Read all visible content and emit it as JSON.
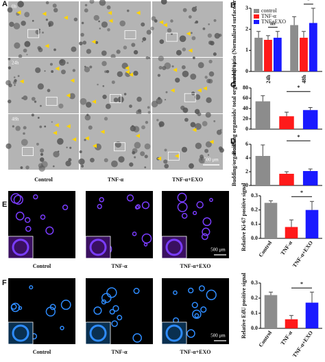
{
  "panels": {
    "A": {
      "letter": "A",
      "times": [
        "0h",
        "24h",
        "48h"
      ],
      "scale": "500 μm",
      "columns": [
        "Control",
        "TNF-α",
        "TNF-α+EXO"
      ]
    },
    "E": {
      "letter": "E",
      "scale": "500 μm",
      "columns": [
        "Control",
        "TNF-α",
        "TNF-α+EXO"
      ]
    },
    "F": {
      "letter": "F",
      "scale": "500 μm",
      "columns": [
        "Control",
        "TNF-α",
        "TNF-α+EXO"
      ]
    }
  },
  "chart_data": [
    {
      "type": "bar",
      "letter": "B",
      "ylabel": "Growth ratio (Normalized surface area)",
      "categories": [
        "24h",
        "48h"
      ],
      "series": [
        {
          "name": "control",
          "color": "#8c8c8c",
          "values": [
            1.6,
            2.2
          ],
          "errors": [
            0.3,
            0.4
          ]
        },
        {
          "name": "TNF-α",
          "color": "#ff1a1a",
          "values": [
            1.5,
            1.6
          ],
          "errors": [
            0.2,
            0.3
          ]
        },
        {
          "name": "TNF+EXO",
          "color": "#1a1aff",
          "values": [
            1.6,
            2.3
          ],
          "errors": [
            0.3,
            0.7
          ]
        }
      ],
      "ylim": [
        0,
        3
      ],
      "yticks": [
        0,
        1,
        2,
        3
      ],
      "annotations": [
        "ns",
        "*"
      ]
    },
    {
      "type": "bar",
      "letter": "C",
      "ylabel": "Budding organoids/ total organoids(%)",
      "categories": [
        null,
        null,
        null
      ],
      "values": [
        54,
        25,
        37
      ],
      "errors": [
        11,
        8,
        5
      ],
      "colors": [
        "#8c8c8c",
        "#ff1a1a",
        "#1a1aff"
      ],
      "ylim": [
        0,
        80
      ],
      "yticks": [
        0,
        20,
        40,
        60,
        80
      ],
      "annotations": [
        "*"
      ]
    },
    {
      "type": "bar",
      "letter": "D",
      "ylabel": "Budding/organoid",
      "categories": [
        null,
        null,
        null
      ],
      "values": [
        4.3,
        1.7,
        2.1
      ],
      "errors": [
        1.6,
        0.3,
        0.3
      ],
      "colors": [
        "#8c8c8c",
        "#ff1a1a",
        "#1a1aff"
      ],
      "ylim": [
        0,
        6
      ],
      "yticks": [
        0,
        2,
        4,
        6
      ],
      "annotations": [
        "*"
      ]
    },
    {
      "type": "bar",
      "ylabel": "Relative Ki-67 positive signal",
      "categories": [
        "Control",
        "TNF-α",
        "TNF-α+EXO"
      ],
      "values": [
        0.25,
        0.08,
        0.2
      ],
      "errors": [
        0.015,
        0.05,
        0.06
      ],
      "colors": [
        "#8c8c8c",
        "#ff1a1a",
        "#1a1aff"
      ],
      "ylim": [
        0,
        0.3
      ],
      "yticks": [
        {
          "value": 0,
          "label": "0.0"
        },
        0.1,
        0.2,
        0.3
      ],
      "annotations": [
        "*"
      ]
    },
    {
      "type": "bar",
      "ylabel": "Relative EdU positive signal",
      "categories": [
        "Control",
        "TNF-α",
        "TNF-α+EXO"
      ],
      "values": [
        0.22,
        0.06,
        0.17
      ],
      "errors": [
        0.02,
        0.025,
        0.07
      ],
      "colors": [
        "#8c8c8c",
        "#ff1a1a",
        "#1a1aff"
      ],
      "ylim": [
        0,
        0.3
      ],
      "yticks": [
        {
          "value": 0,
          "label": "0.0"
        },
        0.1,
        0.2,
        0.3
      ],
      "annotations": [
        "*"
      ]
    }
  ]
}
